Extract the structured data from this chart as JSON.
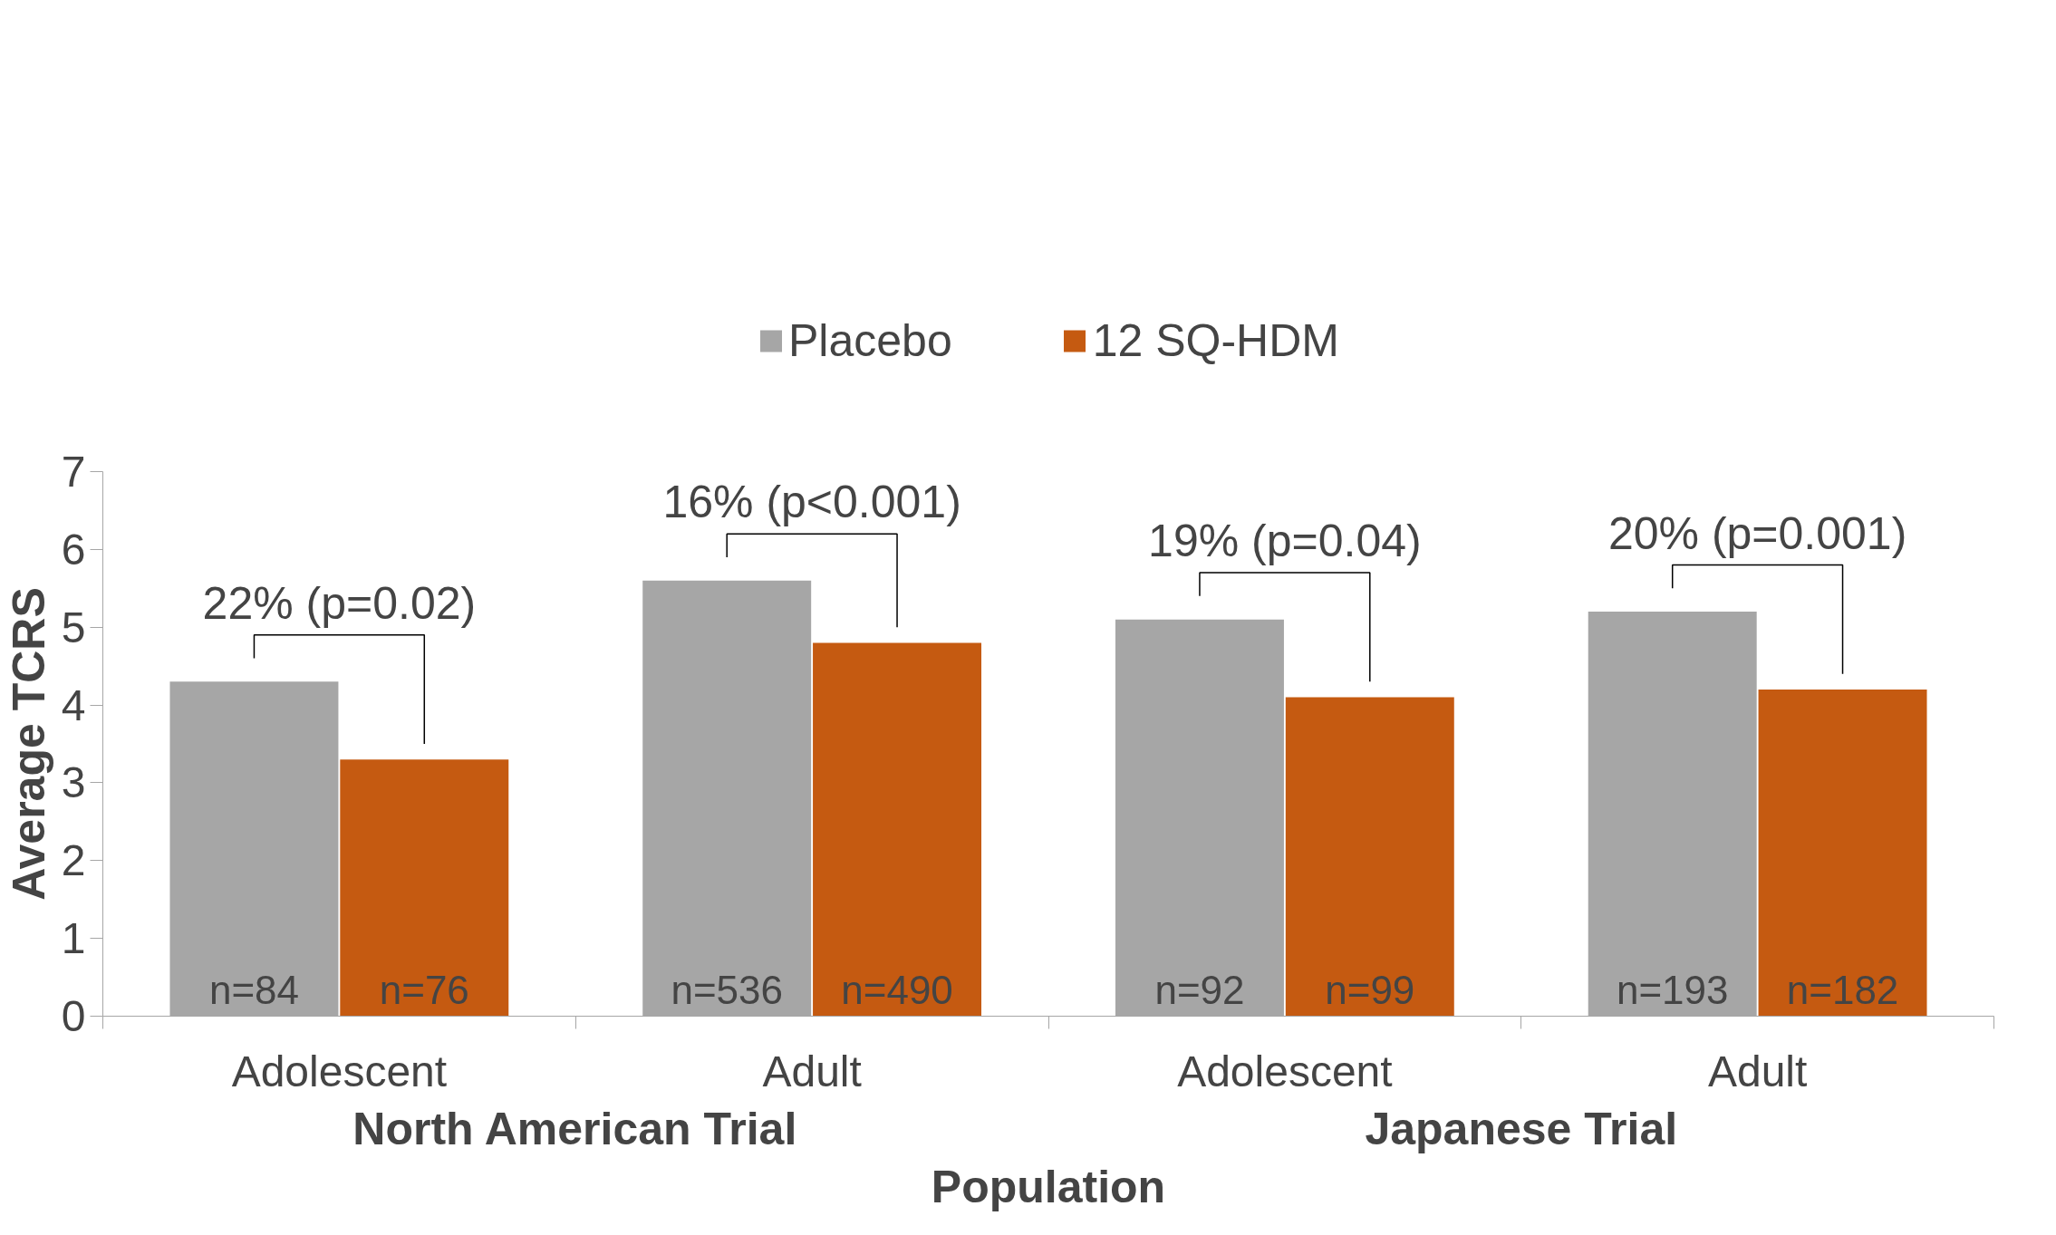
{
  "chart_data": {
    "type": "bar",
    "ylabel": "Average TCRS",
    "xlabel": "Population",
    "categories": [
      "Adolescent",
      "Adult",
      "Adolescent",
      "Adult"
    ],
    "series": [
      {
        "name": "Placebo",
        "color": "#a6a6a6",
        "values": [
          4.3,
          5.6,
          5.1,
          5.2
        ]
      },
      {
        "name": "12 SQ-HDM",
        "color": "#c55a11",
        "values": [
          3.3,
          4.8,
          4.1,
          4.2
        ]
      }
    ],
    "ylim": [
      0,
      7
    ],
    "yticks": [
      0,
      1,
      2,
      3,
      4,
      5,
      6,
      7
    ],
    "grid": false,
    "legend": "top",
    "annotations": [
      "22% (p=0.02)",
      "16% (p<0.001)",
      "19% (p=0.04)",
      "20% (p=0.001)",
      "n=84",
      "n=536",
      "n=92",
      "n=193",
      "n=76",
      "n=490",
      "n=99",
      "n=182",
      "North American Trial",
      "Japanese Trial"
    ]
  }
}
